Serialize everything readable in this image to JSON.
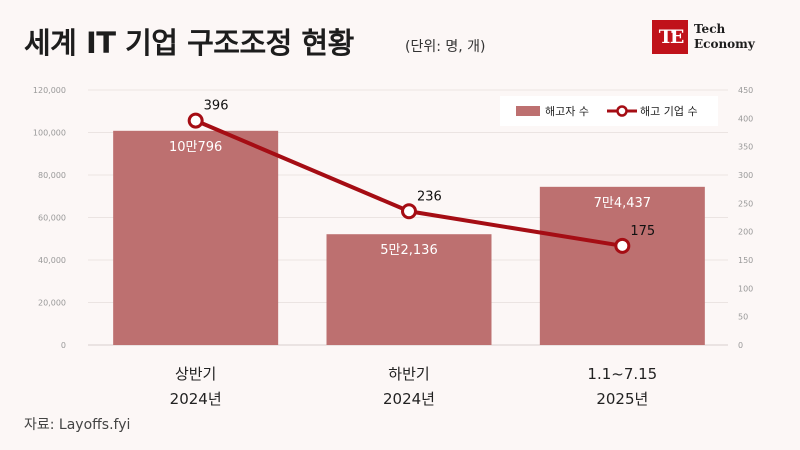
{
  "header": {
    "title": "세계 IT 기업 구조조정 현황",
    "unit": "(단위: 명, 개)"
  },
  "logo": {
    "mark": "TE",
    "line1": "Tech",
    "line2": "Economy"
  },
  "source": "자료: Layoffs.fyi",
  "colors": {
    "bar": "#bd7070",
    "line": "#a50d14",
    "background": "#fcf7f6"
  },
  "chart_data": {
    "type": "bar+line",
    "categories": [
      [
        "상반기",
        "2024년"
      ],
      [
        "하반기",
        "2024년"
      ],
      [
        "1.1~7.15",
        "2025년"
      ]
    ],
    "series": [
      {
        "name": "해고자 수",
        "type": "bar",
        "axis": "left",
        "values": [
          100796,
          52136,
          74437
        ],
        "labels": [
          "10만796",
          "5만2,136",
          "7만4,437"
        ]
      },
      {
        "name": "해고 기업 수",
        "type": "line",
        "axis": "right",
        "values": [
          396,
          236,
          175
        ],
        "labels": [
          "396",
          "236",
          "175"
        ]
      }
    ],
    "y_left": {
      "ylim": [
        0,
        120000
      ],
      "ticks": [
        "0",
        "20,000",
        "40,000",
        "60,000",
        "80,000",
        "100,000",
        "120,000"
      ],
      "tick_values": [
        0,
        20000,
        40000,
        60000,
        80000,
        100000,
        120000
      ]
    },
    "y_right": {
      "ylim": [
        0,
        450
      ],
      "ticks": [
        "0",
        "50",
        "100",
        "150",
        "200",
        "250",
        "300",
        "350",
        "400",
        "450"
      ],
      "tick_values": [
        0,
        50,
        100,
        150,
        200,
        250,
        300,
        350,
        400,
        450
      ]
    },
    "grid": true,
    "legend_position": "top-right"
  }
}
